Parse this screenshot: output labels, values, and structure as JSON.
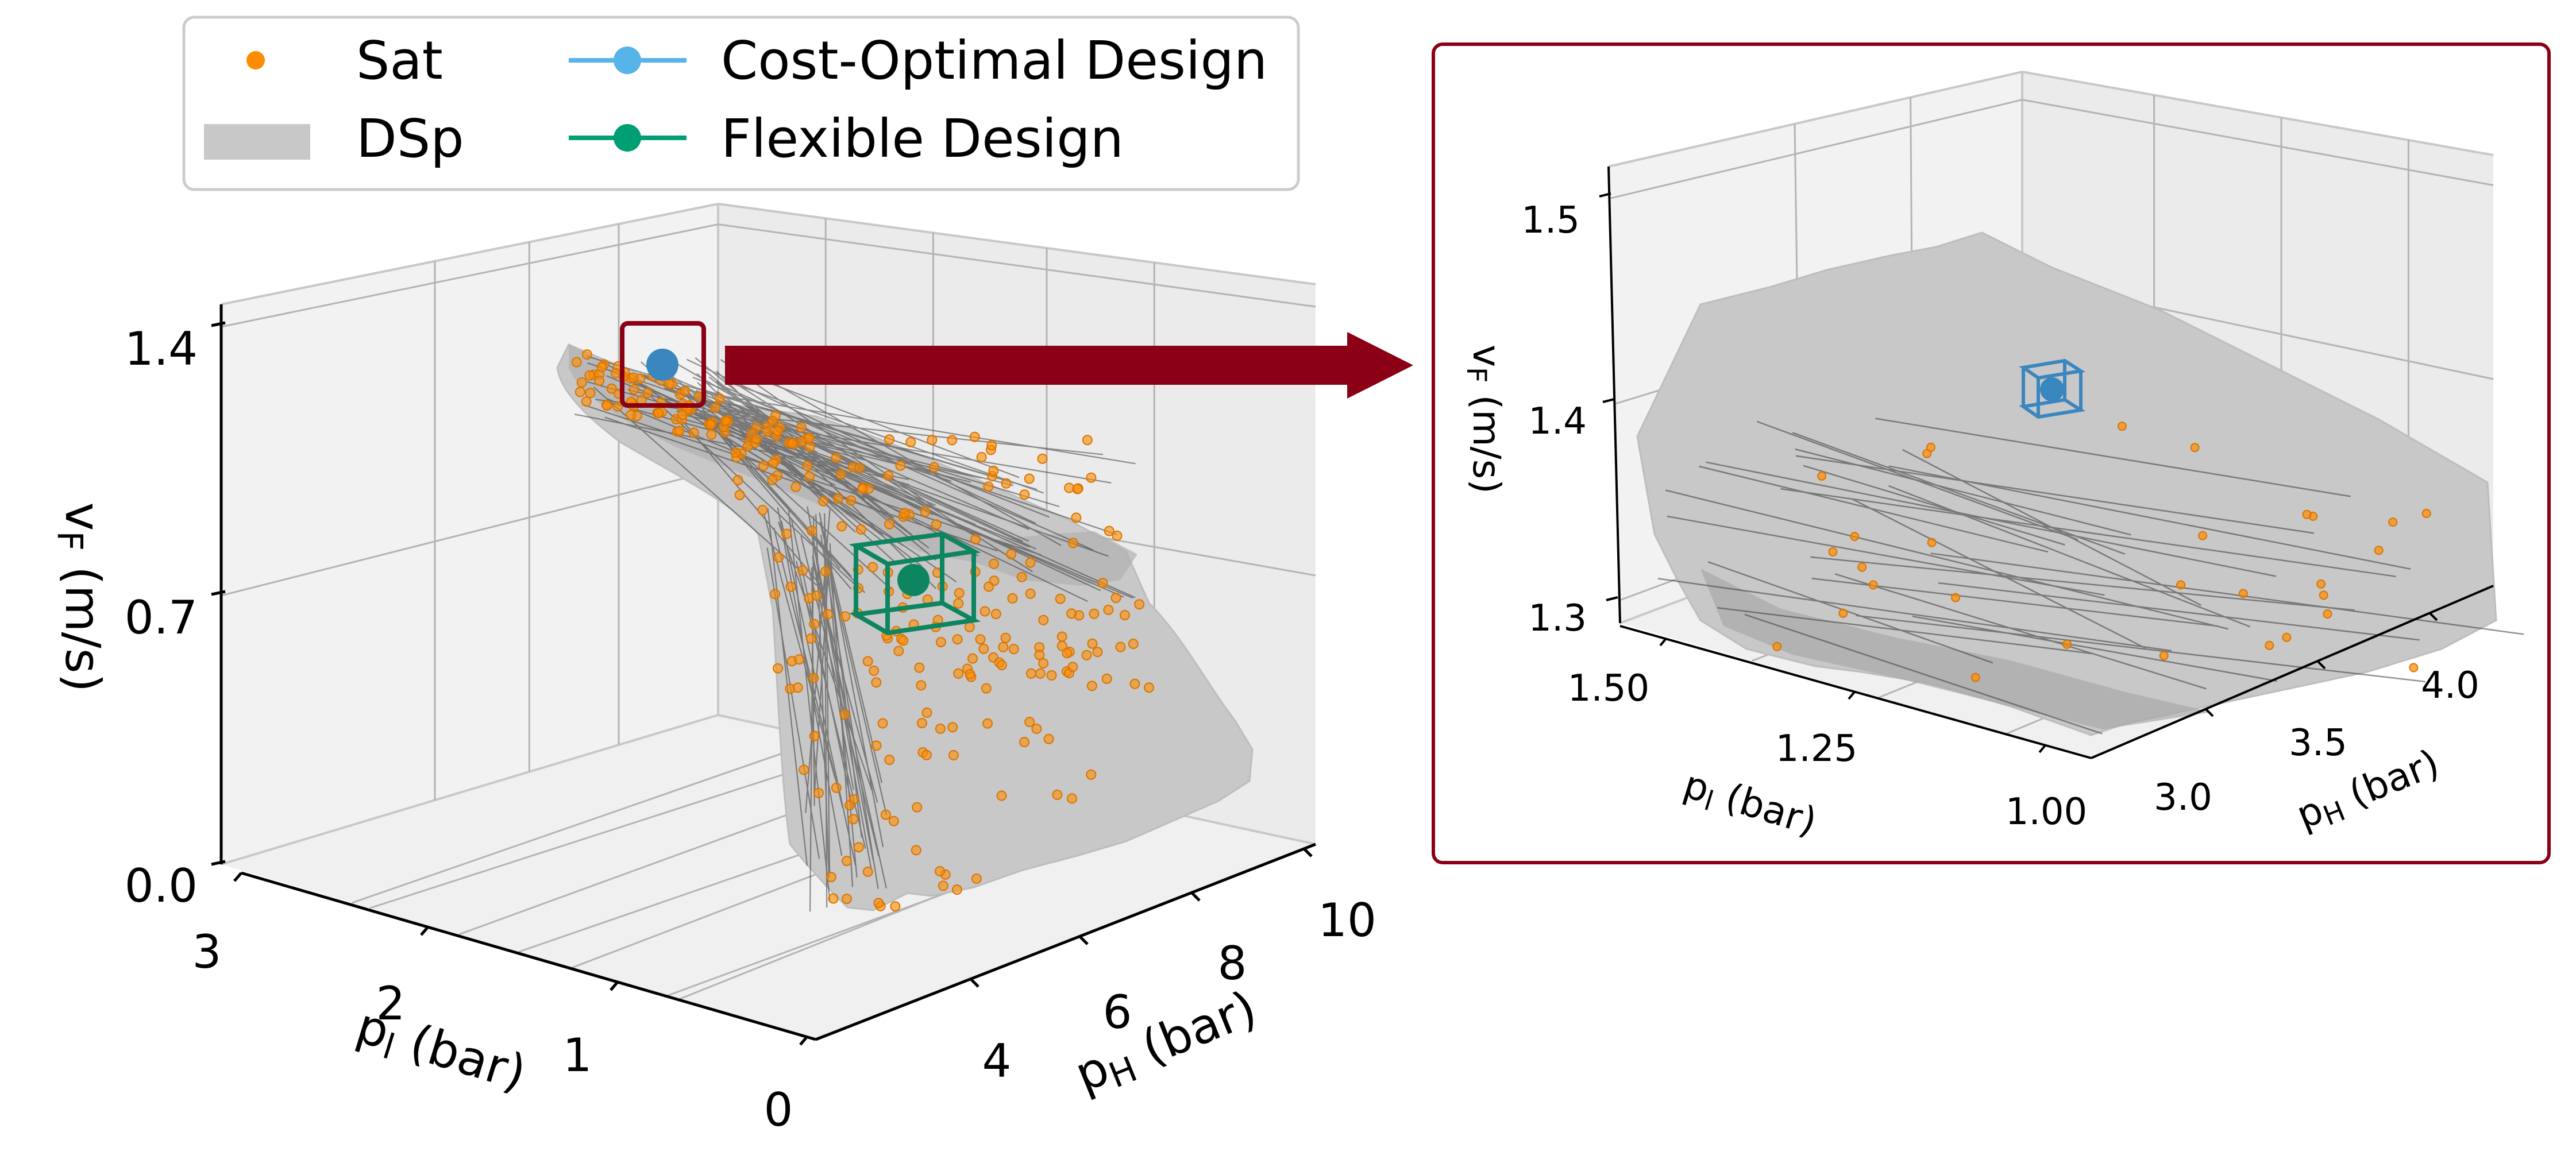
{
  "chart_data": [
    {
      "type": "scatter",
      "name": "main-3d-design-space",
      "xlabel": "p_H (bar)",
      "ylabel": "p_l (bar)",
      "zlabel": "v_F (m/s)",
      "axis_labels": {
        "x": {
          "base": "p",
          "sub": "H",
          "unit": " (bar)"
        },
        "y": {
          "base": "p",
          "sub": "l",
          "unit": " (bar)"
        },
        "z": {
          "base": "v",
          "sub": "F",
          "unit": " (m/s)"
        }
      },
      "xlim": [
        2.8,
        10.5
      ],
      "ylim": [
        0,
        3
      ],
      "zlim": [
        0,
        1.42
      ],
      "xticks": [
        "4",
        "6",
        "8",
        "10"
      ],
      "yticks": [
        "3",
        "2",
        "1",
        "0"
      ],
      "zticks": [
        "1.4",
        "0.7",
        "0.0"
      ],
      "grid": true,
      "legend_position": "top-left",
      "legend": [
        {
          "label": "Sat",
          "kind": "dot",
          "color": "#ff8c00"
        },
        {
          "label": "DSp",
          "kind": "patch",
          "color": "#c8c8c8"
        },
        {
          "label": "Cost-Optimal Design",
          "kind": "line-marker",
          "color": "#56b4e9"
        },
        {
          "label": "Flexible Design",
          "kind": "line-marker",
          "color": "#009e73"
        }
      ],
      "series": [
        {
          "name": "Sat",
          "color": "#ff8c00",
          "n_points": 300
        },
        {
          "name": "DSp",
          "color": "#c8c8c8"
        },
        {
          "name": "Cost-Optimal Design",
          "color": "#56b4e9",
          "point": {
            "p_H": 3.0,
            "p_l": 1.25,
            "v_F": 1.38
          }
        },
        {
          "name": "Flexible Design",
          "color": "#009e73",
          "point": {
            "p_H": 7.5,
            "p_l": 1.5,
            "v_F": 0.7
          }
        }
      ],
      "highlight_box_color": "#8b0014",
      "arrow_color": "#8b0014"
    },
    {
      "type": "scatter",
      "name": "zoomed-inset",
      "xlabel": "p_H (bar)",
      "ylabel": "p_l (bar)",
      "zlabel": "v_F (m/s)",
      "axis_labels": {
        "x": {
          "base": "p",
          "sub": "H",
          "unit": " (bar)"
        },
        "y": {
          "base": "p",
          "sub": "l",
          "unit": " (bar)"
        },
        "z": {
          "base": "v",
          "sub": "F",
          "unit": " (m/s)"
        }
      },
      "xlim": [
        2.8,
        4.3
      ],
      "ylim": [
        1.0,
        1.5
      ],
      "zlim": [
        1.28,
        1.52
      ],
      "xticks": [
        "3.0",
        "3.5",
        "4.0"
      ],
      "yticks": [
        "1.50",
        "1.25",
        "1.00"
      ],
      "zticks": [
        "1.5",
        "1.4",
        "1.3"
      ],
      "grid": true,
      "frame_color": "#8b0014",
      "series": [
        {
          "name": "Sat",
          "color": "#ff8c00",
          "n_points": 30
        },
        {
          "name": "DSp",
          "color": "#c8c8c8"
        },
        {
          "name": "Cost-Optimal Design",
          "color": "#3a86bf",
          "point": {
            "p_H": 3.0,
            "p_l": 1.25,
            "v_F": 1.38
          }
        }
      ]
    }
  ]
}
